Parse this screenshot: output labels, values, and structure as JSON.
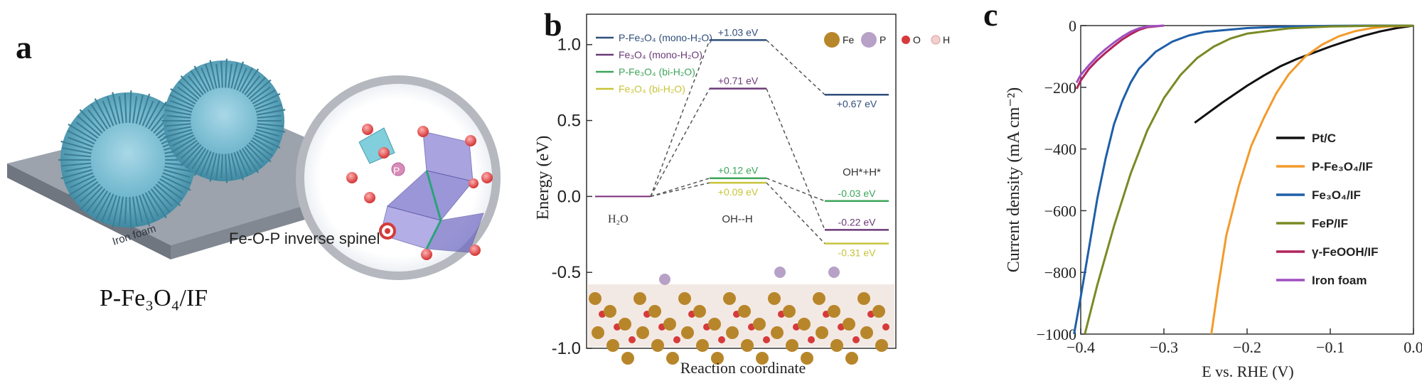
{
  "panel_a": {
    "letter": "a",
    "substrate_label": "Iron foam",
    "structure_label": "Fe-O-P inverse spinel",
    "atom_label_p": "P",
    "caption": "P-Fe₃O₄/IF"
  },
  "chart_data": [
    {
      "panel": "b",
      "type": "line",
      "title": "",
      "xlabel": "Reaction coordinate",
      "ylabel": "Energy (eV)",
      "ylim": [
        -1.0,
        1.2
      ],
      "yticks": [
        "1.0",
        "0.5",
        "0.0",
        "-0.5",
        "-1.0"
      ],
      "ytick_values": [
        1.0,
        0.5,
        0.0,
        -0.5,
        -1.0
      ],
      "states": [
        "H2O",
        "OH--H",
        "OH*+H*"
      ],
      "state_labels": {
        "initial": "H₂O",
        "ts": "OH--H",
        "final": "OH*+H*"
      },
      "series": [
        {
          "name": "P-Fe₃O₄ (mono-H₂O)",
          "color": "#2f4e7a",
          "values": [
            0.0,
            1.03,
            0.67
          ],
          "labels": [
            "",
            "+1.03 eV",
            "+0.67 eV"
          ]
        },
        {
          "name": "Fe₃O₄ (mono-H₂O)",
          "color": "#6b3a78",
          "values": [
            0.0,
            0.71,
            -0.22
          ],
          "labels": [
            "",
            "+0.71 eV",
            "-0.22 eV"
          ]
        },
        {
          "name": "P-Fe₃O₄ (bi-H₂O)",
          "color": "#3da55a",
          "values": [
            0.0,
            0.12,
            -0.03
          ],
          "labels": [
            "",
            "+0.12 eV",
            "-0.03 eV"
          ]
        },
        {
          "name": "Fe₃O₄ (bi-H₂O)",
          "color": "#c8c43a",
          "values": [
            0.0,
            0.09,
            -0.31
          ],
          "labels": [
            "",
            "+0.09 eV",
            "-0.31 eV"
          ]
        }
      ],
      "atom_legend": [
        {
          "label": "Fe",
          "color": "#b8862a"
        },
        {
          "label": "P",
          "color": "#b7a1c6"
        },
        {
          "label": "O",
          "color": "#d63a3a"
        },
        {
          "label": "H",
          "color": "#f2d0d0"
        }
      ]
    },
    {
      "panel": "c",
      "type": "line",
      "title": "",
      "xlabel": "E vs. RHE (V)",
      "ylabel": "Current density (mA cm⁻²)",
      "xlim": [
        -0.4,
        0.0
      ],
      "ylim": [
        -1000,
        0
      ],
      "xticks": [
        "−0.4",
        "−0.3",
        "−0.2",
        "−0.1",
        "0.0"
      ],
      "xtick_values": [
        -0.4,
        -0.3,
        -0.2,
        -0.1,
        0.0
      ],
      "yticks": [
        "0",
        "−200",
        "−400",
        "−600",
        "−800",
        "−1000"
      ],
      "ytick_values": [
        0,
        -200,
        -400,
        -600,
        -800,
        -1000
      ],
      "legend_position": "bottom-right",
      "series": [
        {
          "name": "Pt/C",
          "color": "#111111",
          "x": [
            -0.263,
            -0.23,
            -0.2,
            -0.18,
            -0.16,
            -0.14,
            -0.12,
            -0.1,
            -0.08,
            -0.06,
            -0.04,
            -0.02,
            0.0
          ],
          "y": [
            -315,
            -250,
            -195,
            -162,
            -132,
            -108,
            -88,
            -68,
            -50,
            -33,
            -19,
            -8,
            0
          ]
        },
        {
          "name": "P-Fe₃O₄/IF",
          "color": "#f39a2b",
          "x": [
            -0.243,
            -0.235,
            -0.225,
            -0.21,
            -0.195,
            -0.18,
            -0.165,
            -0.15,
            -0.13,
            -0.11,
            -0.09,
            -0.07,
            -0.05,
            -0.03,
            0.0
          ],
          "y": [
            -1000,
            -850,
            -680,
            -520,
            -390,
            -300,
            -220,
            -158,
            -100,
            -62,
            -35,
            -18,
            -8,
            -3,
            0
          ]
        },
        {
          "name": "Fe₃O₄/IF",
          "color": "#1f5fa8",
          "x": [
            -0.408,
            -0.4,
            -0.39,
            -0.38,
            -0.37,
            -0.36,
            -0.35,
            -0.34,
            -0.33,
            -0.31,
            -0.29,
            -0.27,
            -0.25,
            -0.2,
            -0.15,
            -0.1,
            -0.05,
            0.0
          ],
          "y": [
            -1000,
            -880,
            -720,
            -560,
            -430,
            -320,
            -245,
            -185,
            -140,
            -85,
            -52,
            -32,
            -20,
            -8,
            -3,
            -1,
            0,
            0
          ]
        },
        {
          "name": "FeP/IF",
          "color": "#7a8a25",
          "x": [
            -0.395,
            -0.38,
            -0.36,
            -0.34,
            -0.32,
            -0.3,
            -0.28,
            -0.26,
            -0.24,
            -0.22,
            -0.2,
            -0.15,
            -0.1,
            -0.05,
            0.0
          ],
          "y": [
            -1000,
            -840,
            -650,
            -480,
            -340,
            -235,
            -160,
            -105,
            -68,
            -42,
            -26,
            -9,
            -3,
            -1,
            0
          ]
        },
        {
          "name": "γ-FeOOH/IF",
          "color": "#b0245a",
          "x": [
            -0.405,
            -0.4,
            -0.39,
            -0.38,
            -0.37,
            -0.36,
            -0.35,
            -0.34,
            -0.33,
            -0.32,
            -0.3
          ],
          "y": [
            -205,
            -178,
            -140,
            -112,
            -88,
            -66,
            -45,
            -28,
            -14,
            -5,
            0
          ]
        },
        {
          "name": "Iron foam",
          "color": "#a04fbf",
          "x": [
            -0.405,
            -0.4,
            -0.39,
            -0.38,
            -0.37,
            -0.36,
            -0.35,
            -0.34,
            -0.33,
            -0.32,
            -0.3
          ],
          "y": [
            -185,
            -160,
            -128,
            -100,
            -76,
            -55,
            -36,
            -20,
            -9,
            -3,
            0
          ]
        }
      ]
    }
  ]
}
